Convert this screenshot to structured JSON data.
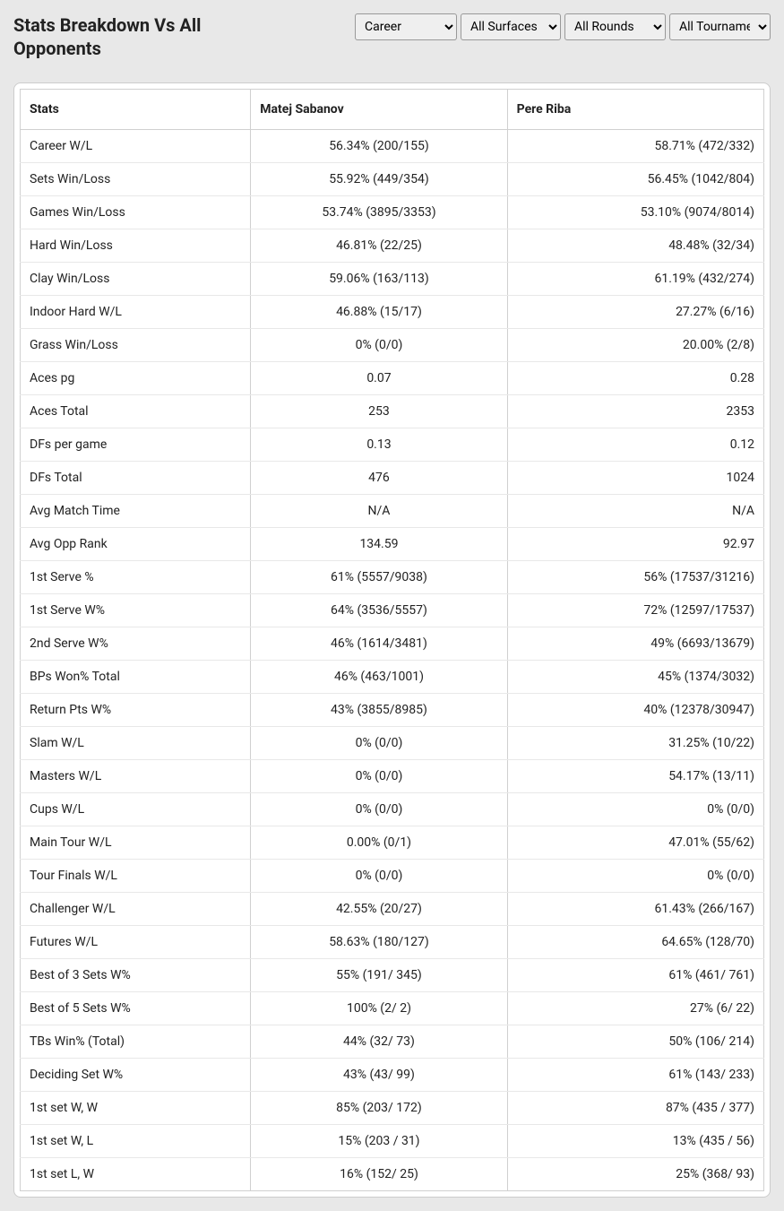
{
  "title": "Stats Breakdown Vs All Opponents",
  "filters": {
    "period": {
      "selected": "Career",
      "options": [
        "Career"
      ]
    },
    "surface": {
      "selected": "All Surfaces",
      "options": [
        "All Surfaces"
      ]
    },
    "round": {
      "selected": "All Rounds",
      "options": [
        "All Rounds"
      ]
    },
    "tournament": {
      "selected": "All Tournaments",
      "options": [
        "All Tournaments"
      ]
    }
  },
  "table": {
    "headers": [
      "Stats",
      "Matej Sabanov",
      "Pere Riba"
    ],
    "rows": [
      [
        "Career W/L",
        "56.34% (200/155)",
        "58.71% (472/332)"
      ],
      [
        "Sets Win/Loss",
        "55.92% (449/354)",
        "56.45% (1042/804)"
      ],
      [
        "Games Win/Loss",
        "53.74% (3895/3353)",
        "53.10% (9074/8014)"
      ],
      [
        "Hard Win/Loss",
        "46.81% (22/25)",
        "48.48% (32/34)"
      ],
      [
        "Clay Win/Loss",
        "59.06% (163/113)",
        "61.19% (432/274)"
      ],
      [
        "Indoor Hard W/L",
        "46.88% (15/17)",
        "27.27% (6/16)"
      ],
      [
        "Grass Win/Loss",
        "0% (0/0)",
        "20.00% (2/8)"
      ],
      [
        "Aces pg",
        "0.07",
        "0.28"
      ],
      [
        "Aces Total",
        "253",
        "2353"
      ],
      [
        "DFs per game",
        "0.13",
        "0.12"
      ],
      [
        "DFs Total",
        "476",
        "1024"
      ],
      [
        "Avg Match Time",
        "N/A",
        "N/A"
      ],
      [
        "Avg Opp Rank",
        "134.59",
        "92.97"
      ],
      [
        "1st Serve %",
        "61% (5557/9038)",
        "56% (17537/31216)"
      ],
      [
        "1st Serve W%",
        "64% (3536/5557)",
        "72% (12597/17537)"
      ],
      [
        "2nd Serve W%",
        "46% (1614/3481)",
        "49% (6693/13679)"
      ],
      [
        "BPs Won% Total",
        "46% (463/1001)",
        "45% (1374/3032)"
      ],
      [
        "Return Pts W%",
        "43% (3855/8985)",
        "40% (12378/30947)"
      ],
      [
        "Slam W/L",
        "0% (0/0)",
        "31.25% (10/22)"
      ],
      [
        "Masters W/L",
        "0% (0/0)",
        "54.17% (13/11)"
      ],
      [
        "Cups W/L",
        "0% (0/0)",
        "0% (0/0)"
      ],
      [
        "Main Tour W/L",
        "0.00% (0/1)",
        "47.01% (55/62)"
      ],
      [
        "Tour Finals W/L",
        "0% (0/0)",
        "0% (0/0)"
      ],
      [
        "Challenger W/L",
        "42.55% (20/27)",
        "61.43% (266/167)"
      ],
      [
        "Futures W/L",
        "58.63% (180/127)",
        "64.65% (128/70)"
      ],
      [
        "Best of 3 Sets W%",
        "55% (191/ 345)",
        "61% (461/ 761)"
      ],
      [
        "Best of 5 Sets W%",
        "100% (2/ 2)",
        "27% (6/ 22)"
      ],
      [
        "TBs Win% (Total)",
        "44% (32/ 73)",
        "50% (106/ 214)"
      ],
      [
        "Deciding Set W%",
        "43% (43/ 99)",
        "61% (143/ 233)"
      ],
      [
        "1st set W, W",
        "85% (203/ 172)",
        "87% (435 / 377)"
      ],
      [
        "1st set W, L",
        "15% (203 / 31)",
        "13% (435 / 56)"
      ],
      [
        "1st set L, W",
        "16% (152/ 25)",
        "25% (368/ 93)"
      ]
    ]
  },
  "colors": {
    "page_bg": "#e8e8e8",
    "card_bg": "#ffffff",
    "border": "#d0d0d0",
    "row_border": "#e8e8e8",
    "text": "#222222"
  }
}
